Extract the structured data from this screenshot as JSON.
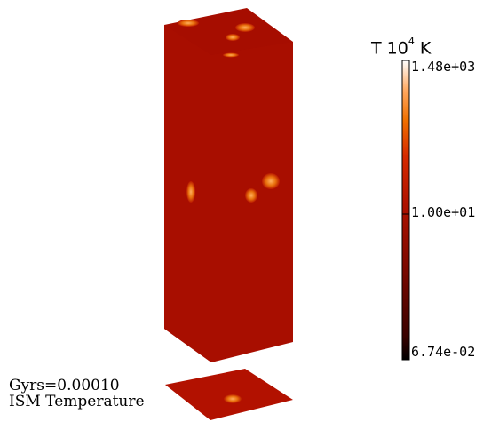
{
  "colorbar": {
    "title_prefix": "T 10",
    "title_exponent": "4",
    "title_suffix": " K",
    "ticks": {
      "max": "1.48e+03",
      "mid": "1.00e+01",
      "min": "6.74e-02"
    },
    "scale": "log",
    "colors": [
      "#000000",
      "#8b0a00",
      "#c81e00",
      "#ff7a00",
      "#ffffff"
    ]
  },
  "annotation": {
    "time": "Gyrs=0.00010",
    "field": "ISM Temperature"
  },
  "render": {
    "box_color": "#a80e00",
    "box_side_color": "#a20c00",
    "box_top_color": "#a60d00",
    "hotspot_color": "#e0660a"
  }
}
